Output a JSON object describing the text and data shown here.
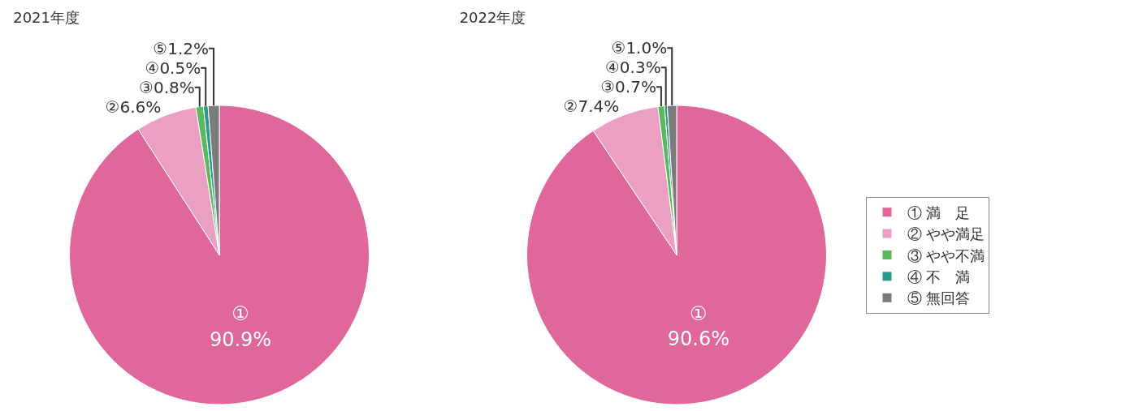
{
  "chart_data": [
    {
      "type": "pie",
      "title": "2021年度",
      "categories": [
        null,
        null,
        null,
        null,
        null
      ],
      "values": [
        90.9,
        6.6,
        0.8,
        0.5,
        1.2
      ],
      "colors": [
        "#e0679c",
        "#eba0c3",
        "#5cb85c",
        "#2b9a8c",
        "#7b7b7b"
      ],
      "value_labels": [
        "①\n90.9%",
        "②6.6%",
        "③0.8%",
        "④0.5%",
        "⑤1.2%"
      ]
    },
    {
      "type": "pie",
      "title": "2022年度",
      "categories": [
        "① 満　足",
        "② やや満足",
        "③ やや不満",
        "④ 不　満",
        "⑤ 無回答"
      ],
      "values": [
        90.6,
        7.4,
        0.7,
        0.3,
        1.0
      ],
      "colors": [
        "#e0679c",
        "#eba0c3",
        "#5cb85c",
        "#2b9a8c",
        "#7b7b7b"
      ],
      "value_labels": [
        "①\n90.6%",
        "②7.4%",
        "③0.7%",
        "④0.3%",
        "⑤1.0%"
      ],
      "legend": "right"
    }
  ]
}
